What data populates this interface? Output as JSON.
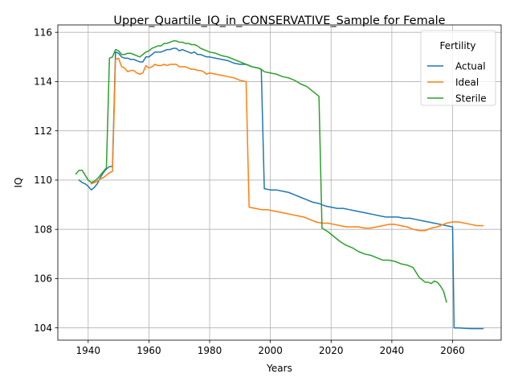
{
  "chart_data": {
    "type": "line",
    "title": "Upper_Quartile_IQ_in_CONSERVATIVE_Sample for Female",
    "xlabel": "Years",
    "ylabel": "IQ",
    "xlim": [
      1930,
      2076
    ],
    "ylim": [
      103.5,
      116.3
    ],
    "xticks": [
      1940,
      1960,
      1980,
      2000,
      2020,
      2040,
      2060
    ],
    "yticks": [
      104,
      106,
      108,
      110,
      112,
      114,
      116
    ],
    "grid": true,
    "legend": {
      "title": "Fertility",
      "placement": "top-right"
    },
    "series": [
      {
        "name": "Actual",
        "color": "#1f77b4",
        "points": [
          [
            1937,
            110.0
          ],
          [
            1938,
            109.9
          ],
          [
            1939,
            109.85
          ],
          [
            1940,
            109.75
          ],
          [
            1941,
            109.6
          ],
          [
            1942,
            109.7
          ],
          [
            1943,
            109.85
          ],
          [
            1944,
            110.1
          ],
          [
            1945,
            110.3
          ],
          [
            1946,
            110.45
          ],
          [
            1947,
            110.55
          ],
          [
            1948,
            110.55
          ],
          [
            1949,
            115.2
          ],
          [
            1950,
            115.15
          ],
          [
            1951,
            115.0
          ],
          [
            1952,
            114.95
          ],
          [
            1953,
            114.95
          ],
          [
            1954,
            114.9
          ],
          [
            1955,
            114.9
          ],
          [
            1956,
            114.85
          ],
          [
            1957,
            114.8
          ],
          [
            1958,
            114.8
          ],
          [
            1959,
            115.0
          ],
          [
            1960,
            115.0
          ],
          [
            1961,
            115.1
          ],
          [
            1962,
            115.2
          ],
          [
            1963,
            115.2
          ],
          [
            1964,
            115.2
          ],
          [
            1965,
            115.25
          ],
          [
            1966,
            115.3
          ],
          [
            1967,
            115.3
          ],
          [
            1968,
            115.35
          ],
          [
            1969,
            115.35
          ],
          [
            1970,
            115.25
          ],
          [
            1971,
            115.3
          ],
          [
            1972,
            115.25
          ],
          [
            1973,
            115.2
          ],
          [
            1974,
            115.15
          ],
          [
            1975,
            115.2
          ],
          [
            1976,
            115.1
          ],
          [
            1977,
            115.1
          ],
          [
            1978,
            115.05
          ],
          [
            1979,
            115.0
          ],
          [
            1980,
            115.0
          ],
          [
            1982,
            114.95
          ],
          [
            1984,
            114.9
          ],
          [
            1986,
            114.85
          ],
          [
            1988,
            114.75
          ],
          [
            1990,
            114.7
          ],
          [
            1992,
            114.7
          ],
          [
            1994,
            114.6
          ],
          [
            1996,
            114.55
          ],
          [
            1997,
            114.5
          ],
          [
            1998,
            109.65
          ],
          [
            2000,
            109.6
          ],
          [
            2002,
            109.6
          ],
          [
            2004,
            109.55
          ],
          [
            2006,
            109.5
          ],
          [
            2008,
            109.4
          ],
          [
            2010,
            109.3
          ],
          [
            2012,
            109.2
          ],
          [
            2014,
            109.1
          ],
          [
            2016,
            109.05
          ],
          [
            2018,
            108.95
          ],
          [
            2020,
            108.9
          ],
          [
            2022,
            108.85
          ],
          [
            2024,
            108.85
          ],
          [
            2026,
            108.8
          ],
          [
            2028,
            108.75
          ],
          [
            2030,
            108.7
          ],
          [
            2032,
            108.65
          ],
          [
            2034,
            108.6
          ],
          [
            2036,
            108.55
          ],
          [
            2038,
            108.5
          ],
          [
            2040,
            108.5
          ],
          [
            2042,
            108.5
          ],
          [
            2044,
            108.45
          ],
          [
            2046,
            108.45
          ],
          [
            2048,
            108.4
          ],
          [
            2050,
            108.35
          ],
          [
            2052,
            108.3
          ],
          [
            2054,
            108.25
          ],
          [
            2056,
            108.2
          ],
          [
            2058,
            108.15
          ],
          [
            2060,
            108.1
          ],
          [
            2060.5,
            104.0
          ],
          [
            2062,
            104.0
          ],
          [
            2064,
            103.98
          ],
          [
            2066,
            103.97
          ],
          [
            2068,
            103.97
          ],
          [
            2070,
            103.97
          ]
        ]
      },
      {
        "name": "Ideal",
        "color": "#ff7f0e",
        "points": [
          [
            1941,
            109.85
          ],
          [
            1942,
            109.9
          ],
          [
            1943,
            109.95
          ],
          [
            1944,
            110.05
          ],
          [
            1945,
            110.1
          ],
          [
            1946,
            110.2
          ],
          [
            1947,
            110.3
          ],
          [
            1948,
            110.35
          ],
          [
            1949,
            114.9
          ],
          [
            1950,
            114.95
          ],
          [
            1951,
            114.6
          ],
          [
            1952,
            114.55
          ],
          [
            1953,
            114.4
          ],
          [
            1954,
            114.45
          ],
          [
            1955,
            114.45
          ],
          [
            1956,
            114.35
          ],
          [
            1957,
            114.3
          ],
          [
            1958,
            114.35
          ],
          [
            1959,
            114.65
          ],
          [
            1960,
            114.55
          ],
          [
            1961,
            114.6
          ],
          [
            1962,
            114.7
          ],
          [
            1963,
            114.65
          ],
          [
            1964,
            114.65
          ],
          [
            1965,
            114.7
          ],
          [
            1966,
            114.65
          ],
          [
            1967,
            114.7
          ],
          [
            1968,
            114.7
          ],
          [
            1969,
            114.7
          ],
          [
            1970,
            114.6
          ],
          [
            1971,
            114.6
          ],
          [
            1972,
            114.6
          ],
          [
            1973,
            114.55
          ],
          [
            1974,
            114.5
          ],
          [
            1975,
            114.5
          ],
          [
            1976,
            114.45
          ],
          [
            1977,
            114.45
          ],
          [
            1978,
            114.4
          ],
          [
            1979,
            114.3
          ],
          [
            1980,
            114.35
          ],
          [
            1982,
            114.3
          ],
          [
            1984,
            114.25
          ],
          [
            1986,
            114.2
          ],
          [
            1988,
            114.15
          ],
          [
            1990,
            114.05
          ],
          [
            1992,
            114.0
          ],
          [
            1993,
            108.9
          ],
          [
            1995,
            108.85
          ],
          [
            1997,
            108.8
          ],
          [
            1999,
            108.8
          ],
          [
            2001,
            108.75
          ],
          [
            2003,
            108.7
          ],
          [
            2005,
            108.65
          ],
          [
            2007,
            108.6
          ],
          [
            2009,
            108.55
          ],
          [
            2011,
            108.5
          ],
          [
            2013,
            108.4
          ],
          [
            2015,
            108.3
          ],
          [
            2017,
            108.25
          ],
          [
            2019,
            108.25
          ],
          [
            2021,
            108.2
          ],
          [
            2023,
            108.15
          ],
          [
            2025,
            108.1
          ],
          [
            2027,
            108.1
          ],
          [
            2029,
            108.1
          ],
          [
            2031,
            108.05
          ],
          [
            2033,
            108.05
          ],
          [
            2035,
            108.1
          ],
          [
            2037,
            108.15
          ],
          [
            2039,
            108.2
          ],
          [
            2041,
            108.2
          ],
          [
            2043,
            108.15
          ],
          [
            2045,
            108.1
          ],
          [
            2047,
            108.0
          ],
          [
            2049,
            107.95
          ],
          [
            2051,
            107.95
          ],
          [
            2053,
            108.05
          ],
          [
            2055,
            108.1
          ],
          [
            2057,
            108.2
          ],
          [
            2058,
            108.25
          ],
          [
            2060,
            108.3
          ],
          [
            2062,
            108.3
          ],
          [
            2064,
            108.25
          ],
          [
            2066,
            108.2
          ],
          [
            2068,
            108.15
          ],
          [
            2070,
            108.15
          ]
        ]
      },
      {
        "name": "Sterile",
        "color": "#2ca02c",
        "points": [
          [
            1936,
            110.25
          ],
          [
            1937,
            110.4
          ],
          [
            1938,
            110.4
          ],
          [
            1939,
            110.2
          ],
          [
            1940,
            110.0
          ],
          [
            1941,
            109.9
          ],
          [
            1942,
            109.95
          ],
          [
            1943,
            110.05
          ],
          [
            1944,
            110.2
          ],
          [
            1945,
            110.35
          ],
          [
            1946,
            110.5
          ],
          [
            1947,
            114.95
          ],
          [
            1948,
            115.0
          ],
          [
            1949,
            115.3
          ],
          [
            1950,
            115.25
          ],
          [
            1951,
            115.1
          ],
          [
            1952,
            115.1
          ],
          [
            1953,
            115.15
          ],
          [
            1954,
            115.15
          ],
          [
            1955,
            115.1
          ],
          [
            1956,
            115.05
          ],
          [
            1957,
            115.0
          ],
          [
            1958,
            115.1
          ],
          [
            1959,
            115.2
          ],
          [
            1960,
            115.25
          ],
          [
            1961,
            115.35
          ],
          [
            1962,
            115.4
          ],
          [
            1963,
            115.45
          ],
          [
            1964,
            115.45
          ],
          [
            1965,
            115.55
          ],
          [
            1966,
            115.55
          ],
          [
            1967,
            115.6
          ],
          [
            1968,
            115.65
          ],
          [
            1969,
            115.65
          ],
          [
            1970,
            115.6
          ],
          [
            1971,
            115.6
          ],
          [
            1972,
            115.55
          ],
          [
            1973,
            115.55
          ],
          [
            1974,
            115.5
          ],
          [
            1975,
            115.5
          ],
          [
            1976,
            115.45
          ],
          [
            1977,
            115.35
          ],
          [
            1978,
            115.3
          ],
          [
            1979,
            115.25
          ],
          [
            1980,
            115.2
          ],
          [
            1982,
            115.15
          ],
          [
            1984,
            115.05
          ],
          [
            1986,
            115.0
          ],
          [
            1988,
            114.9
          ],
          [
            1990,
            114.8
          ],
          [
            1992,
            114.7
          ],
          [
            1994,
            114.6
          ],
          [
            1996,
            114.55
          ],
          [
            1997,
            114.5
          ],
          [
            1998,
            114.4
          ],
          [
            2000,
            114.35
          ],
          [
            2002,
            114.3
          ],
          [
            2004,
            114.2
          ],
          [
            2006,
            114.15
          ],
          [
            2008,
            114.05
          ],
          [
            2010,
            113.9
          ],
          [
            2012,
            113.8
          ],
          [
            2014,
            113.6
          ],
          [
            2016,
            113.4
          ],
          [
            2017,
            108.05
          ],
          [
            2019,
            107.9
          ],
          [
            2021,
            107.7
          ],
          [
            2023,
            107.5
          ],
          [
            2025,
            107.35
          ],
          [
            2027,
            107.25
          ],
          [
            2029,
            107.1
          ],
          [
            2031,
            107.0
          ],
          [
            2033,
            106.95
          ],
          [
            2035,
            106.85
          ],
          [
            2037,
            106.75
          ],
          [
            2039,
            106.75
          ],
          [
            2041,
            106.7
          ],
          [
            2043,
            106.6
          ],
          [
            2045,
            106.55
          ],
          [
            2047,
            106.45
          ],
          [
            2048,
            106.25
          ],
          [
            2049,
            106.05
          ],
          [
            2050,
            105.95
          ],
          [
            2051,
            105.85
          ],
          [
            2052,
            105.85
          ],
          [
            2053,
            105.8
          ],
          [
            2054,
            105.9
          ],
          [
            2055,
            105.85
          ],
          [
            2056,
            105.7
          ],
          [
            2057,
            105.5
          ],
          [
            2058,
            105.05
          ]
        ]
      }
    ]
  }
}
